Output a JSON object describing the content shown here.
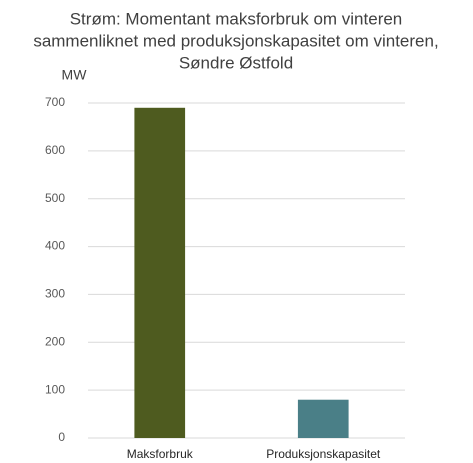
{
  "chart_data": {
    "type": "bar",
    "title": [
      "Strøm: Momentant maksforbruk om vinteren",
      "sammenliknet med produksjonskapasitet om vinteren,",
      "Søndre Østfold"
    ],
    "y_label": "MW",
    "categories": [
      "Maksforbruk",
      "Produksjonskapasitet"
    ],
    "values": [
      690,
      80
    ],
    "colors": [
      "#4e5b1f",
      "#4a7f87"
    ],
    "ylim": [
      0,
      700
    ],
    "yticks": [
      0,
      100,
      200,
      300,
      400,
      500,
      600,
      700
    ],
    "grid": true
  }
}
